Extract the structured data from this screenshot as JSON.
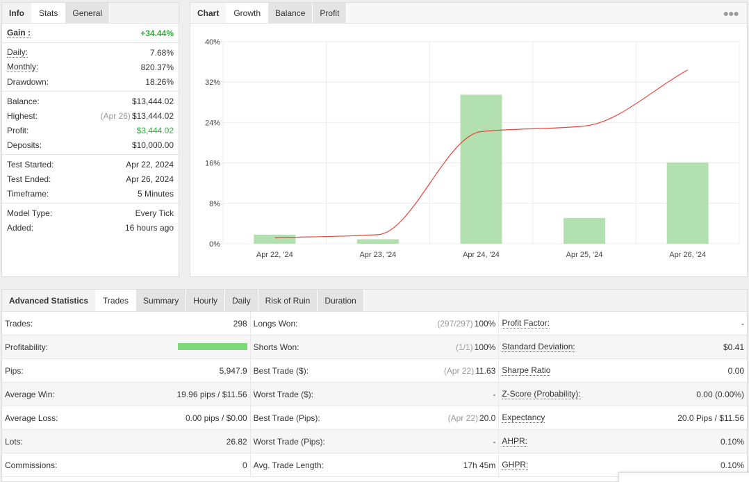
{
  "info_panel": {
    "tabs": [
      "Info",
      "Stats",
      "General"
    ],
    "active_tab": "Stats",
    "gain": {
      "label": "Gain :",
      "value": "+34.44%"
    },
    "performance": [
      {
        "label": "Daily:",
        "value": "7.68%"
      },
      {
        "label": "Monthly:",
        "value": "820.37%"
      },
      {
        "label": "Drawdown:",
        "value": "18.26%"
      }
    ],
    "balance": {
      "label": "Balance:",
      "value": "$13,444.02"
    },
    "highest": {
      "label": "Highest:",
      "date": "(Apr 26)",
      "value": "$13,444.02"
    },
    "profit": {
      "label": "Profit:",
      "value": "$3,444.02"
    },
    "deposits": {
      "label": "Deposits:",
      "value": "$10,000.00"
    },
    "test": [
      {
        "label": "Test Started:",
        "value": "Apr 22, 2024"
      },
      {
        "label": "Test Ended:",
        "value": "Apr 26, 2024"
      },
      {
        "label": "Timeframe:",
        "value": "5 Minutes"
      }
    ],
    "model": [
      {
        "label": "Model Type:",
        "value": "Every Tick"
      },
      {
        "label": "Added:",
        "value": "16 hours ago"
      }
    ]
  },
  "chart_panel": {
    "tabs": [
      "Chart",
      "Growth",
      "Balance",
      "Profit"
    ],
    "active_tab": "Growth",
    "more_icon": "ellipsis-icon"
  },
  "chart_data": {
    "type": "bar",
    "categories": [
      "Apr 22, '24",
      "Apr 23, '24",
      "Apr 24, '24",
      "Apr 25, '24",
      "Apr 26, '24"
    ],
    "series": [
      {
        "type": "bar",
        "color": "#b3e0b0",
        "values": [
          1.8,
          0.9,
          29.5,
          5.1,
          16.1
        ]
      },
      {
        "type": "line",
        "color": "#e8453c",
        "values": [
          1.2,
          1.8,
          22.2,
          23.3,
          34.4
        ]
      }
    ],
    "yticks": [
      "0%",
      "8%",
      "16%",
      "24%",
      "32%",
      "40%"
    ],
    "ylim": [
      0,
      40
    ],
    "grid": true
  },
  "advanced": {
    "title": "Advanced Statistics",
    "tabs": [
      "Trades",
      "Summary",
      "Hourly",
      "Daily",
      "Risk of Ruin",
      "Duration"
    ],
    "active_tab": "Trades",
    "col1": [
      {
        "label": "Trades:",
        "value": "298"
      },
      {
        "label": "Profitability:",
        "value": ""
      },
      {
        "label": "Pips:",
        "value": "5,947.9"
      },
      {
        "label": "Average Win:",
        "value": "19.96 pips / $11.56"
      },
      {
        "label": "Average Loss:",
        "value": "0.00 pips / $0.00"
      },
      {
        "label": "Lots:",
        "value": "26.82"
      },
      {
        "label": "Commissions:",
        "value": "0"
      }
    ],
    "profitability_pct": 100,
    "col2": [
      {
        "label": "Longs Won:",
        "muted": "(297/297)",
        "value": "100%"
      },
      {
        "label": "Shorts Won:",
        "muted": "(1/1)",
        "value": "100%"
      },
      {
        "label": "Best Trade ($):",
        "muted": "(Apr 22)",
        "value": "11.63"
      },
      {
        "label": "Worst Trade ($):",
        "muted": "",
        "value": "-"
      },
      {
        "label": "Best Trade (Pips):",
        "muted": "(Apr 22)",
        "value": "20.0"
      },
      {
        "label": "Worst Trade (Pips):",
        "muted": "",
        "value": "-"
      },
      {
        "label": "Avg. Trade Length:",
        "muted": "",
        "value": "17h 45m"
      }
    ],
    "col3": [
      {
        "label": "Profit Factor:",
        "value": "-"
      },
      {
        "label": "Standard Deviation:",
        "value": "$0.41"
      },
      {
        "label": "Sharpe Ratio",
        "value": "0.00"
      },
      {
        "label": "Z-Score (Probability):",
        "value": "0.00 (0.00%)"
      },
      {
        "label": "Expectancy",
        "value": "20.0 Pips / $11.56"
      },
      {
        "label": "AHPR:",
        "value": "0.10%"
      },
      {
        "label": "GHPR:",
        "value": "0.10%"
      }
    ]
  },
  "colors": {
    "positive": "#2fae3b",
    "bar": "#b3e0b0",
    "line": "#e8453c"
  }
}
